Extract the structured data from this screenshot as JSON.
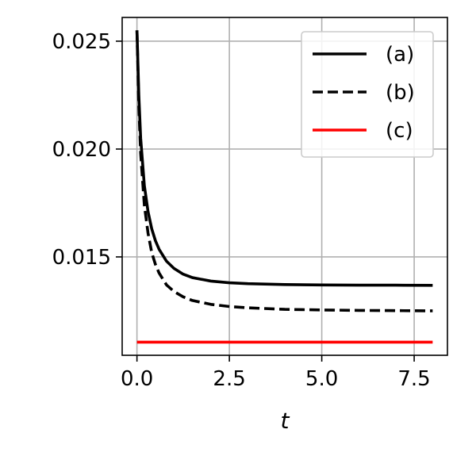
{
  "chart_data": {
    "type": "line",
    "xlabel": "t",
    "ylabel": "",
    "xlim": [
      -0.4,
      8.4
    ],
    "ylim": [
      0.01044,
      0.0261
    ],
    "xticks": [
      {
        "value": 0.0,
        "label": "0.0"
      },
      {
        "value": 2.5,
        "label": "2.5"
      },
      {
        "value": 5.0,
        "label": "5.0"
      },
      {
        "value": 7.5,
        "label": "7.5"
      }
    ],
    "yticks": [
      {
        "value": 0.015,
        "label": "0.015"
      },
      {
        "value": 0.02,
        "label": "0.020"
      },
      {
        "value": 0.025,
        "label": "0.025"
      }
    ],
    "grid": true,
    "legend_position": "top-right",
    "series": [
      {
        "name": "(a)",
        "color": "#000000",
        "dash": "solid",
        "x": [
          0.0,
          0.05,
          0.1,
          0.2,
          0.3,
          0.4,
          0.5,
          0.6,
          0.8,
          1.0,
          1.25,
          1.5,
          2.0,
          2.5,
          3.0,
          4.0,
          5.0,
          6.0,
          7.0,
          8.0
        ],
        "y": [
          0.0255,
          0.0225,
          0.0205,
          0.0183,
          0.0171,
          0.0163,
          0.01575,
          0.01535,
          0.0148,
          0.01447,
          0.0142,
          0.01404,
          0.01388,
          0.0138,
          0.01376,
          0.01372,
          0.0137,
          0.01369,
          0.01369,
          0.01368
        ]
      },
      {
        "name": "(b)",
        "color": "#000000",
        "dash": "dashed",
        "x": [
          0.0,
          0.05,
          0.1,
          0.2,
          0.3,
          0.4,
          0.5,
          0.6,
          0.8,
          1.0,
          1.25,
          1.5,
          2.0,
          2.5,
          3.0,
          4.0,
          5.0,
          6.0,
          7.0,
          8.0
        ],
        "y": [
          0.0255,
          0.022,
          0.0198,
          0.0174,
          0.0161,
          0.0152,
          0.01465,
          0.01425,
          0.0137,
          0.0134,
          0.01315,
          0.01298,
          0.0128,
          0.0127,
          0.01264,
          0.01257,
          0.01254,
          0.01252,
          0.01251,
          0.0125
        ]
      },
      {
        "name": "(c)",
        "color": "#ff0000",
        "dash": "solid",
        "x": [
          0.0,
          8.0
        ],
        "y": [
          0.01105,
          0.01105
        ]
      }
    ]
  }
}
